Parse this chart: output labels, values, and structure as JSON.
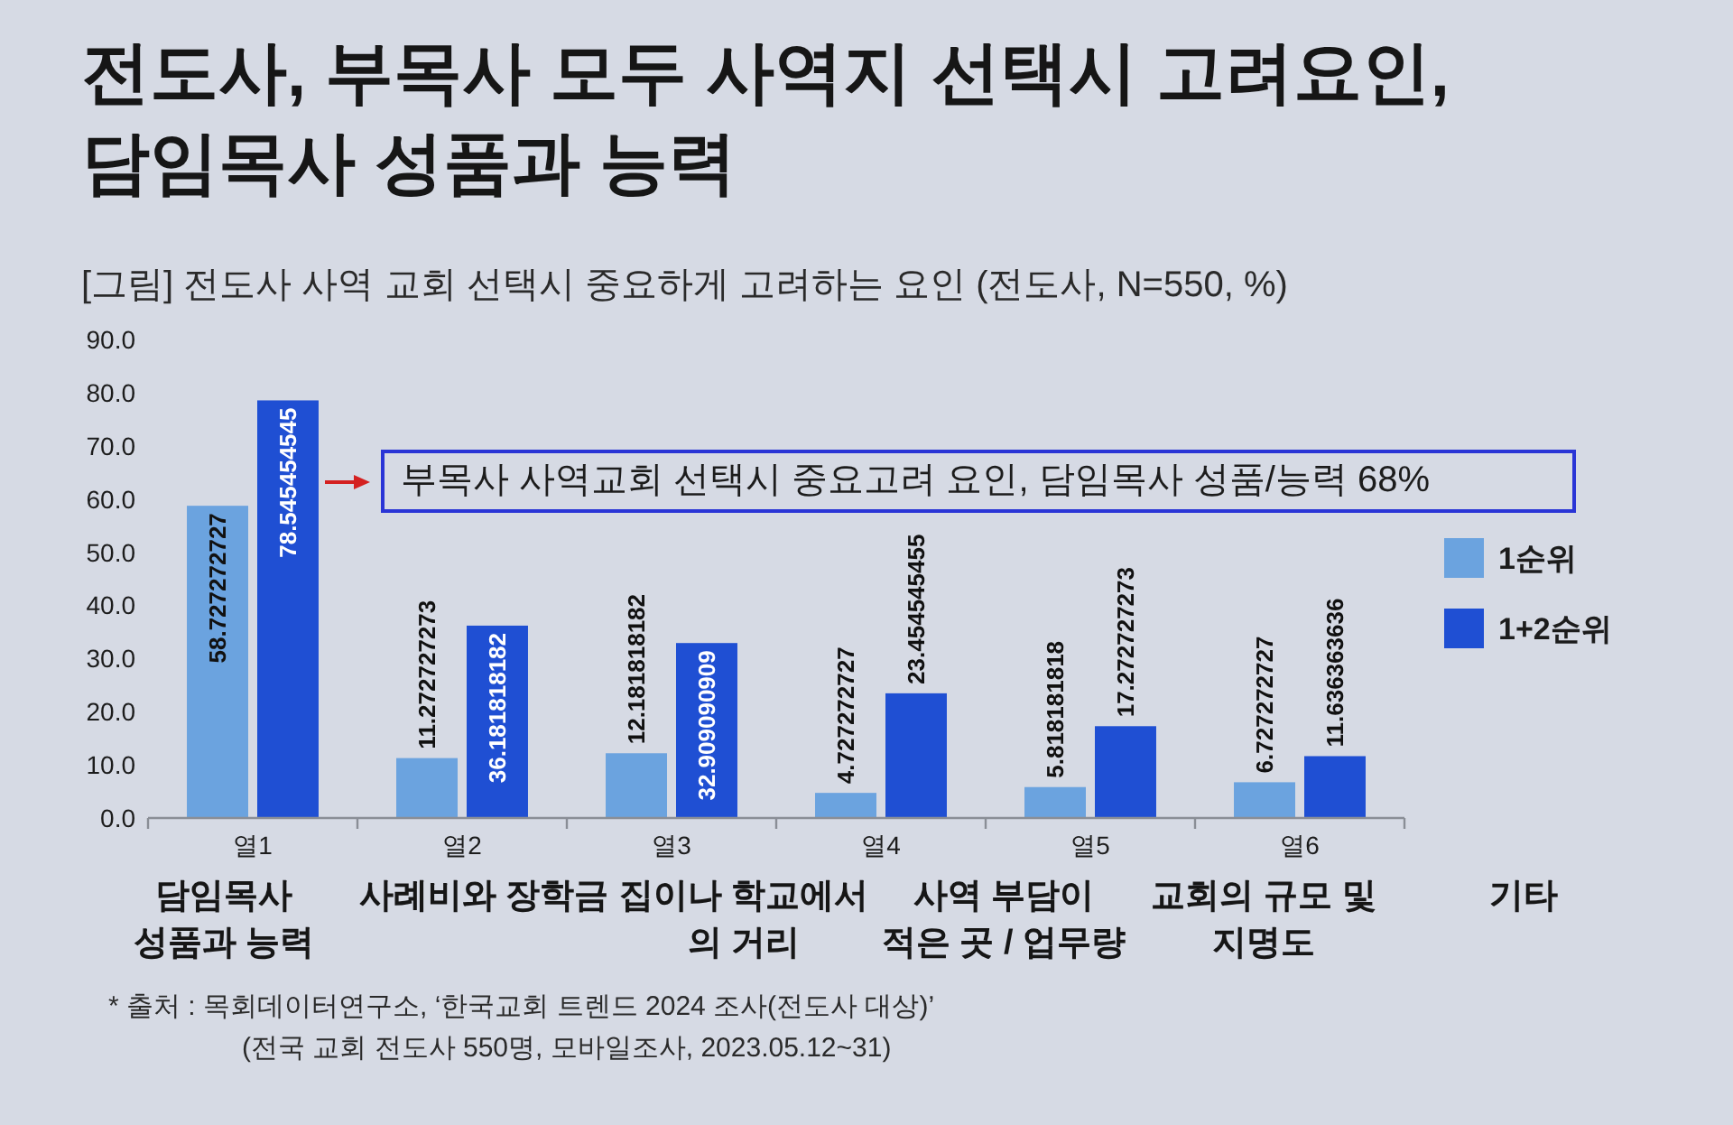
{
  "chart_data": {
    "type": "bar",
    "title": "전도사, 부목사 모두 사역지 선택시 고려요인, 담임목사 성품과 능력",
    "subtitle": "[그림] 전도사 사역 교회 선택시 중요하게 고려하는 요인 (전도사, N=550, %)",
    "categories": [
      "열1",
      "열2",
      "열3",
      "열4",
      "열5",
      "열6"
    ],
    "series": [
      {
        "name": "1순위",
        "color": "#6ba3df",
        "values": [
          58.727272727,
          11.272727273,
          12.181818182,
          4.727272727,
          5.818181818,
          6.727272727
        ]
      },
      {
        "name": "1+2순위",
        "color": "#1f4fd3",
        "values": [
          78.545454545,
          36.181818182,
          32.909090909,
          23.454545455,
          17.272727273,
          11.636363636
        ]
      }
    ],
    "ylim": [
      0,
      90
    ],
    "yticks": [
      {
        "value": 0,
        "label": "0.0"
      },
      {
        "value": 10,
        "label": "10.0"
      },
      {
        "value": 20,
        "label": "20.0"
      },
      {
        "value": 30,
        "label": "30.0"
      },
      {
        "value": 40,
        "label": "40.0"
      },
      {
        "value": 50,
        "label": "50.0"
      },
      {
        "value": 60,
        "label": "60.0"
      },
      {
        "value": 70,
        "label": "70.0"
      },
      {
        "value": 80,
        "label": "80.0"
      },
      {
        "value": 90,
        "label": "90.0"
      }
    ],
    "legend": "right",
    "data_labels": true,
    "annotations": [
      "부목사 사역교회 선택시 중요고려 요인, 담임목사 성품/능력 68%",
      "담임목사\n성품과 능력",
      "사례비와 장학금",
      "집이나 학교에서\n의 거리",
      "사역 부담이\n적은 곳 / 업무량",
      "교회의 규모 및\n지명도",
      "기타",
      "* 출처 : 목회데이터연구소, ‘한국교회 트렌드 2024 조사(전도사 대상)’",
      "(전국 교회 전도사 550명, 모바일조사, 2023.05.12~31)"
    ]
  }
}
